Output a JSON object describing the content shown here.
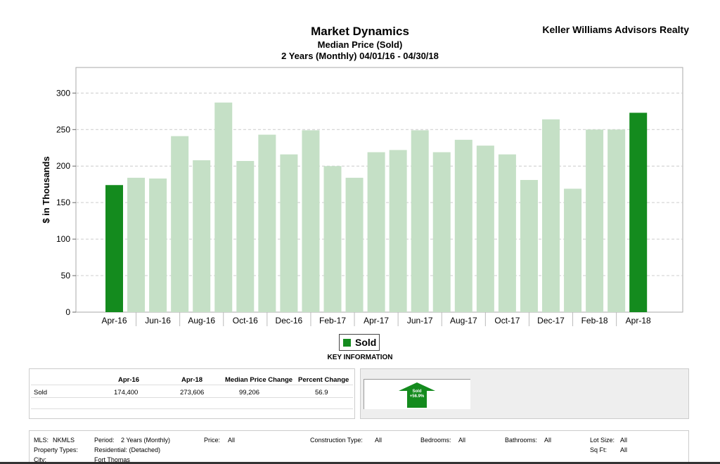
{
  "header": {
    "title": "Market Dynamics",
    "subtitle": "Median Price (Sold)",
    "period": "2 Years (Monthly) 04/01/16 - 04/30/18",
    "brand": "Keller Williams Advisors Realty"
  },
  "chart_data": {
    "type": "bar",
    "ylabel": "$ in Thousands",
    "ylim": [
      0,
      335
    ],
    "yticks": [
      0,
      50,
      100,
      150,
      200,
      250,
      300
    ],
    "grid": true,
    "categories": [
      "Apr-16",
      "May-16",
      "Jun-16",
      "Jul-16",
      "Aug-16",
      "Sep-16",
      "Oct-16",
      "Nov-16",
      "Dec-16",
      "Jan-17",
      "Feb-17",
      "Mar-17",
      "Apr-17",
      "May-17",
      "Jun-17",
      "Jul-17",
      "Aug-17",
      "Sep-17",
      "Oct-17",
      "Nov-17",
      "Dec-17",
      "Jan-18",
      "Feb-18",
      "Mar-18",
      "Apr-18"
    ],
    "tick_labels": [
      "Apr-16",
      "Jun-16",
      "Aug-16",
      "Oct-16",
      "Dec-16",
      "Feb-17",
      "Apr-17",
      "Jun-17",
      "Aug-17",
      "Oct-17",
      "Dec-17",
      "Feb-18",
      "Apr-18"
    ],
    "values": [
      174,
      184,
      183,
      241,
      208,
      287,
      207,
      243,
      216,
      249,
      200,
      184,
      219,
      222,
      249,
      219,
      236,
      228,
      216,
      181,
      264,
      169,
      250,
      250,
      273
    ],
    "highlight": [
      0,
      24
    ],
    "colors": {
      "highlight": "#148b1e",
      "normal": "#c5e0c6"
    },
    "legend": [
      {
        "name": "Sold"
      }
    ]
  },
  "legend": {
    "label": "Sold"
  },
  "key_info": {
    "title": "KEY INFORMATION",
    "headers": [
      "Apr-16",
      "Apr-18",
      "Median Price Change",
      "Percent Change"
    ],
    "row": {
      "label": "Sold",
      "values": [
        "174,400",
        "273,606",
        "99,206",
        "56.9"
      ]
    }
  },
  "indicator": {
    "label": "Sold",
    "change": "+56.9%",
    "color": "#148b1e"
  },
  "footer": {
    "mls_label": "MLS:",
    "mls_value": "NKMLS",
    "period_label": "Period:",
    "period_value": "2 Years (Monthly)",
    "price_label": "Price:",
    "price_value": "All",
    "construction_label": "Construction Type:",
    "construction_value": "All",
    "bedrooms_label": "Bedrooms:",
    "bedrooms_value": "All",
    "bathrooms_label": "Bathrooms:",
    "bathrooms_value": "All",
    "lotsize_label": "Lot Size:",
    "lotsize_value": "All",
    "proptypes_label": "Property Types:",
    "proptypes_value": "Residential: (Detached)",
    "sqft_label": "Sq Ft:",
    "sqft_value": "All",
    "city_label": "City:",
    "city_value": "Fort Thomas"
  }
}
